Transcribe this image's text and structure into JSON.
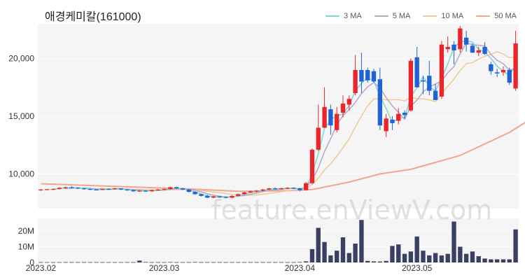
{
  "chart_data": {
    "type": "candlestick",
    "title": "애경케미칼(161000)",
    "watermark": "feature.enViewV.com",
    "colors": {
      "up": "#e8262b",
      "down": "#1f63d6",
      "volume": "#3b3f63",
      "panel_bg": "#f5f5f5",
      "ma3": "#7fd4d0",
      "ma5": "#b9a5c7",
      "ma10": "#f2c892",
      "ma50": "#f3a58c"
    },
    "legend": [
      {
        "label": "3 MA",
        "color": "#7fd4d0"
      },
      {
        "label": "5 MA",
        "color": "#b9a5c7"
      },
      {
        "label": "10 MA",
        "color": "#f2c892"
      },
      {
        "label": "50 MA",
        "color": "#f3a58c"
      }
    ],
    "price_axis": {
      "ticks": [
        10000,
        15000,
        20000
      ],
      "tick_labels": [
        "10,000",
        "15,000",
        "20,000"
      ],
      "ylim": [
        7000,
        23000
      ]
    },
    "volume_axis": {
      "ticks": [
        0,
        10,
        20
      ],
      "tick_labels": [
        "0",
        "10M",
        "20M"
      ],
      "ylim": [
        0,
        28
      ],
      "unit": "M"
    },
    "date_labels": [
      {
        "text": "2023.02",
        "index": 0
      },
      {
        "text": "2023.03",
        "index": 20
      },
      {
        "text": "2023.04",
        "index": 42
      },
      {
        "text": "2023.05",
        "index": 61
      }
    ],
    "candles": [
      [
        8600,
        8700,
        8550,
        8650
      ],
      [
        8650,
        8700,
        8600,
        8680
      ],
      [
        8680,
        8750,
        8600,
        8700
      ],
      [
        8700,
        8850,
        8650,
        8800
      ],
      [
        8800,
        8900,
        8700,
        8850
      ],
      [
        8850,
        8950,
        8750,
        8800
      ],
      [
        8800,
        8850,
        8700,
        8750
      ],
      [
        8750,
        8800,
        8650,
        8700
      ],
      [
        8700,
        8750,
        8600,
        8650
      ],
      [
        8650,
        8700,
        8580,
        8620
      ],
      [
        8620,
        8720,
        8600,
        8700
      ],
      [
        8700,
        8750,
        8650,
        8690
      ],
      [
        8690,
        8780,
        8650,
        8750
      ],
      [
        8750,
        8760,
        8600,
        8650
      ],
      [
        8650,
        8700,
        8550,
        8600
      ],
      [
        8600,
        8650,
        8450,
        8500
      ],
      [
        8500,
        8600,
        8450,
        8550
      ],
      [
        8550,
        8600,
        8450,
        8500
      ],
      [
        8500,
        8650,
        8450,
        8600
      ],
      [
        8600,
        8700,
        8550,
        8650
      ],
      [
        8650,
        8750,
        8600,
        8700
      ],
      [
        8700,
        8900,
        8650,
        8850
      ],
      [
        8850,
        8900,
        8700,
        8750
      ],
      [
        8750,
        8800,
        8600,
        8650
      ],
      [
        8650,
        8700,
        8400,
        8450
      ],
      [
        8450,
        8500,
        8200,
        8250
      ],
      [
        8250,
        8300,
        8050,
        8100
      ],
      [
        8100,
        8200,
        7900,
        7950
      ],
      [
        7950,
        8100,
        7900,
        8050
      ],
      [
        8050,
        8100,
        7950,
        8000
      ],
      [
        8000,
        8050,
        7900,
        7950
      ],
      [
        7950,
        8150,
        7900,
        8100
      ],
      [
        8100,
        8300,
        8050,
        8250
      ],
      [
        8250,
        8450,
        8200,
        8400
      ],
      [
        8400,
        8550,
        8350,
        8500
      ],
      [
        8500,
        8600,
        8400,
        8550
      ],
      [
        8550,
        8700,
        8500,
        8650
      ],
      [
        8650,
        8800,
        8600,
        8750
      ],
      [
        8750,
        8850,
        8650,
        8700
      ],
      [
        8700,
        8800,
        8650,
        8750
      ],
      [
        8750,
        8850,
        8700,
        8800
      ],
      [
        8800,
        8850,
        8700,
        8750
      ],
      [
        8750,
        8800,
        8500,
        8600
      ],
      [
        8600,
        9300,
        8550,
        9200
      ],
      [
        9200,
        12200,
        9100,
        12100
      ],
      [
        12100,
        16000,
        12000,
        14000
      ],
      [
        14000,
        17500,
        14000,
        15800
      ],
      [
        15600,
        16000,
        13400,
        14200
      ],
      [
        13800,
        15800,
        13600,
        15200
      ],
      [
        15300,
        16800,
        14900,
        16100
      ],
      [
        16000,
        16800,
        15500,
        16500
      ],
      [
        17000,
        20300,
        16800,
        19000
      ],
      [
        19000,
        20500,
        17000,
        18000
      ],
      [
        19000,
        19200,
        17900,
        18100
      ],
      [
        18900,
        19100,
        17900,
        18000
      ],
      [
        18200,
        19200,
        13800,
        14200
      ],
      [
        13700,
        15200,
        13200,
        14800
      ],
      [
        14700,
        15000,
        13800,
        14400
      ],
      [
        14600,
        15700,
        14300,
        15200
      ],
      [
        15300,
        15500,
        14800,
        15100
      ],
      [
        15500,
        20000,
        15400,
        19800
      ],
      [
        20100,
        21000,
        17500,
        17500
      ],
      [
        18100,
        18500,
        16900,
        18000
      ],
      [
        18500,
        19800,
        16800,
        17200
      ],
      [
        17200,
        17800,
        16400,
        16400
      ],
      [
        16700,
        21500,
        16500,
        21200
      ],
      [
        20800,
        21900,
        20500,
        21000
      ],
      [
        21200,
        21500,
        19500,
        20700
      ],
      [
        20800,
        22800,
        20500,
        22600
      ],
      [
        21800,
        22400,
        20600,
        21200
      ],
      [
        21100,
        21300,
        20500,
        20500
      ],
      [
        20500,
        21000,
        20200,
        20700
      ],
      [
        21000,
        21400,
        20300,
        20400
      ],
      [
        19500,
        19700,
        18600,
        18900
      ],
      [
        18800,
        19100,
        18400,
        18700
      ],
      [
        18800,
        19300,
        18500,
        19000
      ],
      [
        19000,
        19200,
        17700,
        17900
      ],
      [
        17400,
        22400,
        17200,
        21300
      ]
    ],
    "volumes": [
      0.2,
      0.2,
      0.2,
      0.2,
      0.2,
      0.2,
      0.2,
      0.2,
      0.2,
      0.2,
      0.2,
      0.2,
      0.2,
      0.2,
      0.2,
      0.2,
      1.2,
      0.3,
      0.2,
      0.2,
      0.2,
      0.3,
      0.2,
      0.2,
      0.2,
      0.3,
      0.2,
      0.2,
      0.2,
      0.2,
      0.2,
      0.2,
      0.2,
      0.2,
      0.2,
      0.2,
      0.2,
      0.2,
      0.2,
      0.2,
      0.2,
      0.2,
      0.3,
      0.7,
      8.5,
      22,
      13,
      4.5,
      7.5,
      16,
      6,
      12,
      27,
      1,
      0.7,
      0.6,
      1,
      10.5,
      11.5,
      5.5,
      7,
      16.5,
      7.5,
      4.5,
      6,
      4.5,
      5.5,
      26,
      10,
      5.5,
      7,
      4,
      2.5,
      2,
      2,
      2,
      2,
      21
    ],
    "ma50_knots": [
      [
        0,
        9150
      ],
      [
        8,
        9000
      ],
      [
        16,
        8850
      ],
      [
        24,
        8700
      ],
      [
        32,
        8500
      ],
      [
        40,
        8550
      ],
      [
        44,
        8650
      ],
      [
        50,
        9300
      ],
      [
        55,
        10000
      ],
      [
        60,
        10400
      ],
      [
        64,
        11000
      ],
      [
        68,
        11600
      ],
      [
        72,
        12600
      ],
      [
        76,
        13600
      ],
      [
        79,
        14600
      ]
    ]
  }
}
